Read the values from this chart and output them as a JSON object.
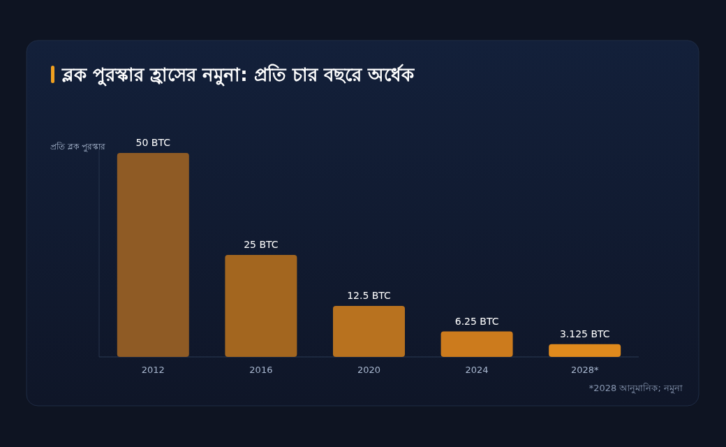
{
  "chart_data": {
    "type": "bar",
    "title": "ব্লক পুরস্কার হ্রাসের নমুনা: প্রতি চার বছরে অর্ধেক",
    "ylabel": "প্রতি ব্লক পুরস্কার",
    "categories": [
      "2012",
      "2016",
      "2020",
      "2024",
      "2028*"
    ],
    "values": [
      50,
      25,
      12.5,
      6.25,
      3.125
    ],
    "value_labels": [
      "50 BTC",
      "25 BTC",
      "12.5 BTC",
      "6.25 BTC",
      "3.125 BTC"
    ],
    "colors": [
      "#8f5b25",
      "#a3661f",
      "#b8721f",
      "#cc7b1d",
      "#df8a1d"
    ],
    "ylim": [
      0,
      50
    ],
    "annotations": [
      "*2028 আনুমানিক; নমুনা"
    ]
  }
}
